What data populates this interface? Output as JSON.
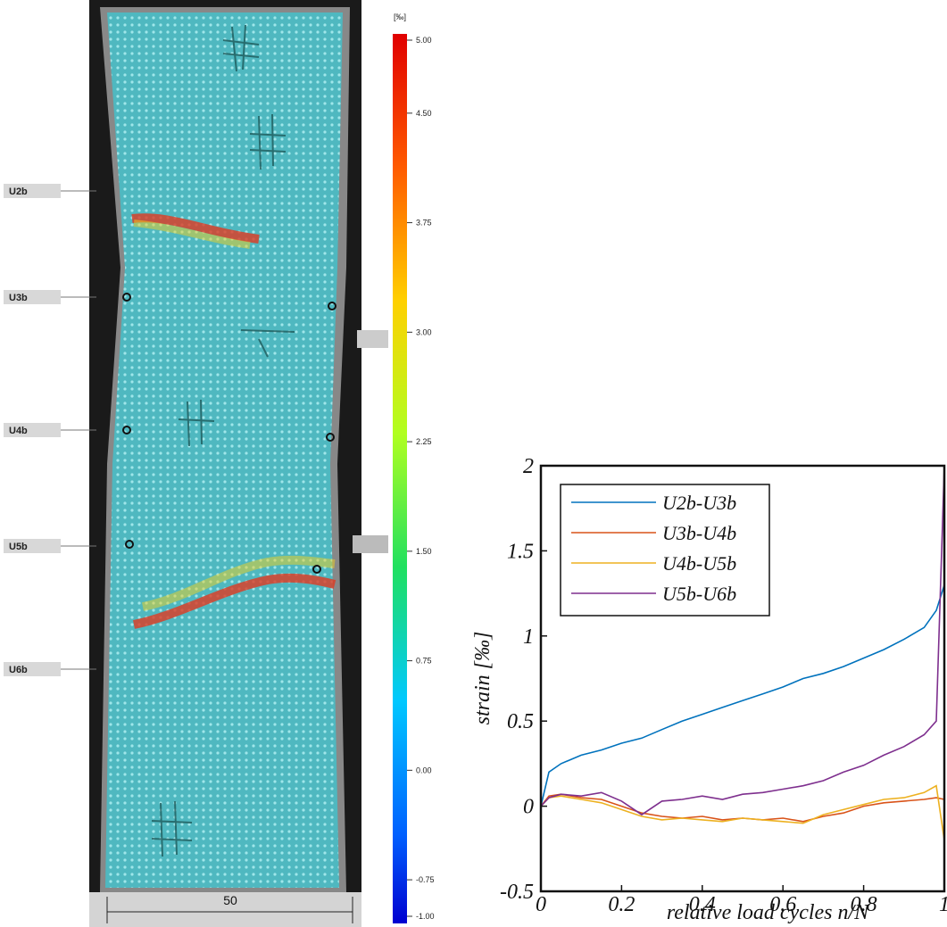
{
  "specimen": {
    "gauges": [
      "U2b",
      "U3b",
      "U4b",
      "U5b",
      "U6b"
    ],
    "scale_label": "50"
  },
  "colorbar": {
    "unit": "[‰]",
    "lim": [
      -1,
      5
    ],
    "ticks": [
      {
        "value": 5,
        "label": "5.00"
      },
      {
        "value": 4.5,
        "label": "4.50"
      },
      {
        "value": 3.75,
        "label": "3.75"
      },
      {
        "value": 3,
        "label": "3.00"
      },
      {
        "value": 2.25,
        "label": "2.25"
      },
      {
        "value": 1.5,
        "label": "1.50"
      },
      {
        "value": 0.75,
        "label": "0.75"
      },
      {
        "value": 0,
        "label": "0.00"
      },
      {
        "value": -0.75,
        "label": "-0.75"
      },
      {
        "value": -1,
        "label": "-1.00"
      }
    ]
  },
  "chart_data": {
    "type": "line",
    "x_label": "relative load cycles n/N",
    "y_label": "strain [‰]",
    "x": [
      0,
      0.02,
      0.05,
      0.1,
      0.15,
      0.2,
      0.25,
      0.3,
      0.35,
      0.4,
      0.45,
      0.5,
      0.55,
      0.6,
      0.65,
      0.7,
      0.75,
      0.8,
      0.85,
      0.9,
      0.95,
      0.98,
      1.0
    ],
    "series": [
      {
        "name": "U2b-U3b",
        "color": "#0072bd",
        "values": [
          0,
          0.2,
          0.25,
          0.3,
          0.33,
          0.37,
          0.4,
          0.45,
          0.5,
          0.54,
          0.58,
          0.62,
          0.66,
          0.7,
          0.75,
          0.78,
          0.82,
          0.87,
          0.92,
          0.98,
          1.05,
          1.15,
          1.3
        ]
      },
      {
        "name": "U3b-U4b",
        "color": "#d95319",
        "values": [
          0,
          0.06,
          0.07,
          0.05,
          0.04,
          0.0,
          -0.04,
          -0.06,
          -0.07,
          -0.06,
          -0.08,
          -0.07,
          -0.08,
          -0.07,
          -0.09,
          -0.06,
          -0.04,
          0,
          0.02,
          0.03,
          0.04,
          0.05,
          0.04
        ]
      },
      {
        "name": "U4b-U5b",
        "color": "#edb120",
        "values": [
          0,
          0.05,
          0.06,
          0.04,
          0.02,
          -0.02,
          -0.06,
          -0.08,
          -0.07,
          -0.08,
          -0.09,
          -0.07,
          -0.08,
          -0.09,
          -0.1,
          -0.05,
          -0.02,
          0.01,
          0.04,
          0.05,
          0.08,
          0.12,
          -0.2
        ]
      },
      {
        "name": "U5b-U6b",
        "color": "#7e2f8e",
        "values": [
          0,
          0.05,
          0.07,
          0.06,
          0.08,
          0.03,
          -0.05,
          0.03,
          0.04,
          0.06,
          0.04,
          0.07,
          0.08,
          0.1,
          0.12,
          0.15,
          0.2,
          0.24,
          0.3,
          0.35,
          0.42,
          0.5,
          2.0
        ]
      }
    ],
    "xlim": [
      0,
      1
    ],
    "xticks": [
      0,
      0.2,
      0.4,
      0.6,
      0.8,
      1
    ],
    "ylim": [
      -0.5,
      2
    ],
    "yticks": [
      -0.5,
      0,
      0.5,
      1,
      1.5,
      2
    ],
    "legend": "upper left"
  }
}
